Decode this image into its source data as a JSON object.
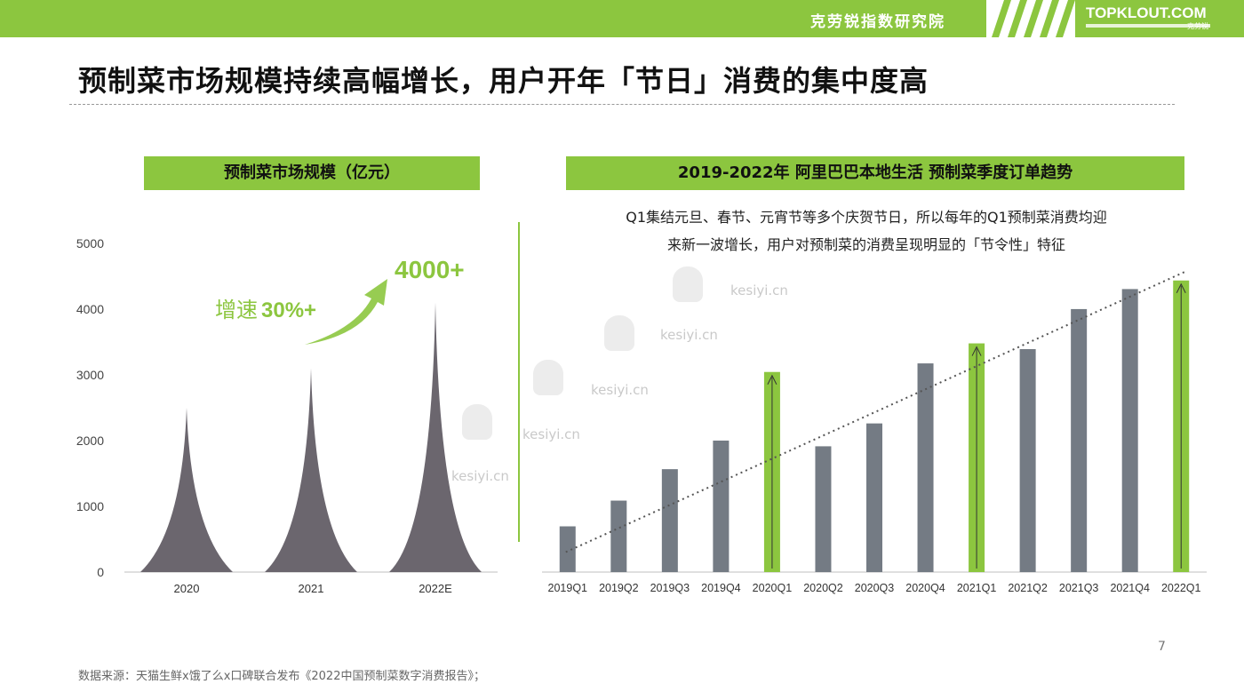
{
  "header": {
    "org_name": "克劳锐指数研究院",
    "brand": "TOPKLOUT.COM",
    "brand_sub": "克劳锐"
  },
  "title": "预制菜市场规模持续高幅增长，用户开年「节日」消费的集中度高",
  "left_panel": {
    "heading": "预制菜市场规模（亿元）",
    "growth_prefix": "增速",
    "growth_value": "30%+",
    "callout": "4000+"
  },
  "right_panel": {
    "heading": "2019-2022年 阿里巴巴本地生活 预制菜季度订单趋势",
    "note_line1": "Q1集结元旦、春节、元宵节等多个庆贺节日，所以每年的Q1预制菜消费均迎",
    "note_line2": "来新一波增长，用户对预制菜的消费呈现明显的「节令性」特征"
  },
  "colors": {
    "accent": "#8cc63f",
    "bar_gray": "#747b84",
    "spike": "#6b666e"
  },
  "watermark": "kesiyi.cn",
  "chart_data": [
    {
      "type": "bar",
      "categories": [
        "2020",
        "2021",
        "2022E"
      ],
      "values": [
        2500,
        3100,
        4100
      ],
      "ylim": [
        0,
        5000
      ],
      "yticks": [
        0,
        1000,
        2000,
        3000,
        4000,
        5000
      ],
      "title": "预制菜市场规模（亿元）"
    },
    {
      "type": "bar",
      "categories": [
        "2019Q1",
        "2019Q2",
        "2019Q3",
        "2019Q4",
        "2020Q1",
        "2020Q2",
        "2020Q3",
        "2020Q4",
        "2021Q1",
        "2021Q2",
        "2021Q3",
        "2021Q4",
        "2022Q1"
      ],
      "values": [
        16,
        25,
        36,
        46,
        70,
        44,
        52,
        73,
        80,
        78,
        92,
        99,
        102
      ],
      "highlighted": [
        "2020Q1",
        "2021Q1",
        "2022Q1"
      ],
      "trendline": true,
      "ylim": [
        0,
        110
      ],
      "title": "2019-2022年 阿里巴巴本地生活 预制菜季度订单趋势"
    }
  ],
  "source": "数据来源：天猫生鲜x饿了么x口碑联合发布《2022中国预制菜数字消费报告》；",
  "page_number": "7"
}
